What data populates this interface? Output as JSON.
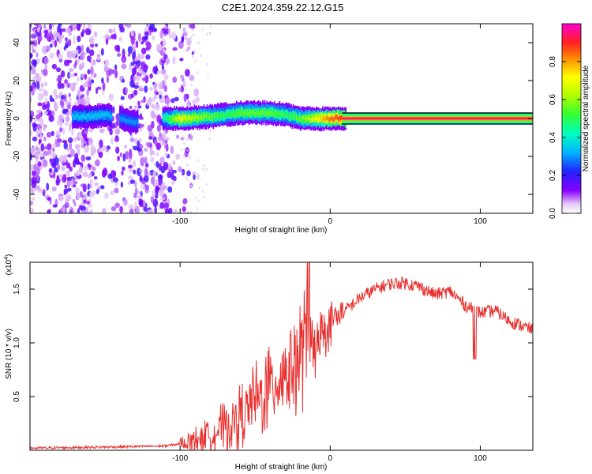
{
  "title": "C2E1.2024.359.22.12.G15",
  "chart_data": [
    {
      "type": "heatmap",
      "xlabel": "Height of straight line (km)",
      "ylabel": "Frequency (Hz)",
      "xlim": [
        -200,
        135
      ],
      "ylim": [
        -50,
        50
      ],
      "x_ticks": [
        -100,
        0,
        100
      ],
      "y_ticks": [
        -40,
        -20,
        0,
        20,
        40
      ],
      "colorbar": {
        "label": "Normalized spectral amplitude",
        "range": [
          0,
          1
        ],
        "ticks": [
          "0.0",
          "0.2",
          "0.4",
          "0.6",
          "0.8"
        ],
        "tick_values": [
          0,
          0.2,
          0.4,
          0.6,
          0.8
        ]
      },
      "ridge": {
        "description_x": [
          -170,
          -160,
          -150,
          -140,
          -130,
          -120,
          -110,
          -100,
          -90,
          -80,
          -70,
          -60,
          -50,
          -40,
          -30,
          -20,
          -10,
          0,
          10,
          135
        ],
        "frequency": [
          1,
          1,
          2,
          0,
          -2,
          0,
          0,
          0,
          0.5,
          1,
          2,
          3,
          3,
          3,
          2,
          0,
          0,
          0,
          0,
          0
        ],
        "amplitude": [
          0.35,
          0.35,
          0.35,
          0.3,
          0.3,
          0.25,
          0.45,
          0.7,
          0.6,
          0.55,
          0.5,
          0.55,
          0.55,
          0.55,
          0.5,
          0.55,
          0.7,
          0.85,
          0.9,
          1.0
        ]
      },
      "noise_region_x": [
        -200,
        -100
      ]
    },
    {
      "type": "line",
      "xlabel": "Height of straight line (km)",
      "ylabel": "SNR (10 * v/v)",
      "yscale_label": "(x10",
      "yscale_exp": "4",
      "yscale_close": ")",
      "xlim": [
        -200,
        135
      ],
      "ylim": [
        0,
        1.75
      ],
      "x_ticks": [
        -100,
        0,
        100
      ],
      "y_ticks": [
        "0.5",
        "1.0",
        "1.5"
      ],
      "y_tick_values": [
        0.5,
        1.0,
        1.5
      ],
      "color": "#e8302e",
      "x": [
        -200,
        -150,
        -110,
        -100,
        -90,
        -80,
        -70,
        -60,
        -50,
        -40,
        -30,
        -20,
        -10,
        0,
        10,
        20,
        30,
        40,
        50,
        60,
        70,
        80,
        90,
        100,
        110,
        120,
        135
      ],
      "y": [
        0.02,
        0.03,
        0.04,
        0.06,
        0.1,
        0.15,
        0.22,
        0.32,
        0.45,
        0.6,
        0.75,
        0.9,
        1.05,
        1.2,
        1.3,
        1.42,
        1.5,
        1.55,
        1.56,
        1.52,
        1.45,
        1.48,
        1.35,
        1.28,
        1.3,
        1.2,
        1.12
      ]
    }
  ]
}
